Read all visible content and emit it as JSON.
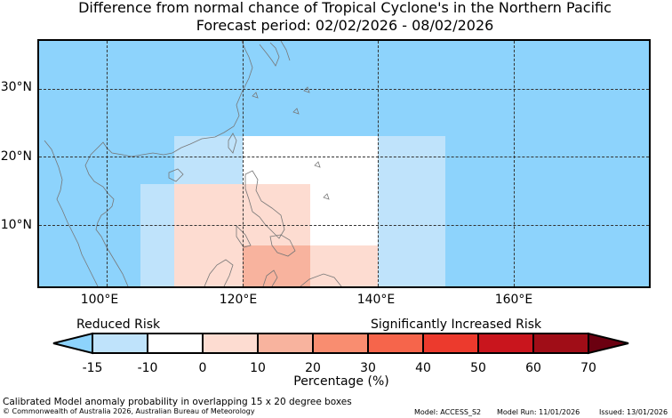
{
  "title": {
    "line1": "Difference from normal chance of Tropical Cyclone's in the Northern Pacific",
    "line2": "Forecast period: 02/02/2026 - 08/02/2026"
  },
  "map": {
    "lon_range": [
      90,
      180
    ],
    "lat_range": [
      1,
      37
    ],
    "background_color": "#8dd3fc",
    "cells": [
      {
        "lon": [
          105,
          120
        ],
        "lat": [
          1,
          16
        ],
        "color": "#bfe3fb"
      },
      {
        "lon": [
          110,
          120
        ],
        "lat": [
          16,
          23
        ],
        "color": "#bfe3fb"
      },
      {
        "lon": [
          120,
          140
        ],
        "lat": [
          7,
          23
        ],
        "color": "#ffffff"
      },
      {
        "lon": [
          110,
          130
        ],
        "lat": [
          1,
          16
        ],
        "color": "#fddcd1"
      },
      {
        "lon": [
          130,
          140
        ],
        "lat": [
          1,
          7
        ],
        "color": "#fddcd1"
      },
      {
        "lon": [
          120,
          130
        ],
        "lat": [
          1,
          7
        ],
        "color": "#f8b39e"
      },
      {
        "lon": [
          140,
          150
        ],
        "lat": [
          1,
          23
        ],
        "color": "#bfe3fb"
      }
    ],
    "lat_labels": [
      "10°N",
      "20°N",
      "30°N"
    ],
    "lon_labels": [
      "100°E",
      "120°E",
      "140°E",
      "160°E"
    ]
  },
  "colorbar": {
    "left_label": "Reduced Risk",
    "right_label": "Significantly Increased Risk",
    "ticks": [
      "-15",
      "-10",
      "0",
      "10",
      "20",
      "30",
      "40",
      "50",
      "60",
      "70"
    ],
    "colors": [
      "#bfe3fb",
      "#ffffff",
      "#fddcd1",
      "#f8b39e",
      "#f98d70",
      "#f6654b",
      "#ec3a2d",
      "#c9151d",
      "#a00d17"
    ],
    "under_color": "#8dd3fc",
    "over_color": "#6b0010",
    "unit_label": "Percentage (%)"
  },
  "footer": {
    "note": "Calibrated Model anomaly probability in overlapping 15 x 20 degree boxes",
    "copyright": "© Commonwealth of Australia 2026, Australian Bureau of Meteorology",
    "model": "Model: ACCESS_S2",
    "run": "Model Run: 11/01/2026",
    "issued": "Issued: 13/01/2026"
  }
}
